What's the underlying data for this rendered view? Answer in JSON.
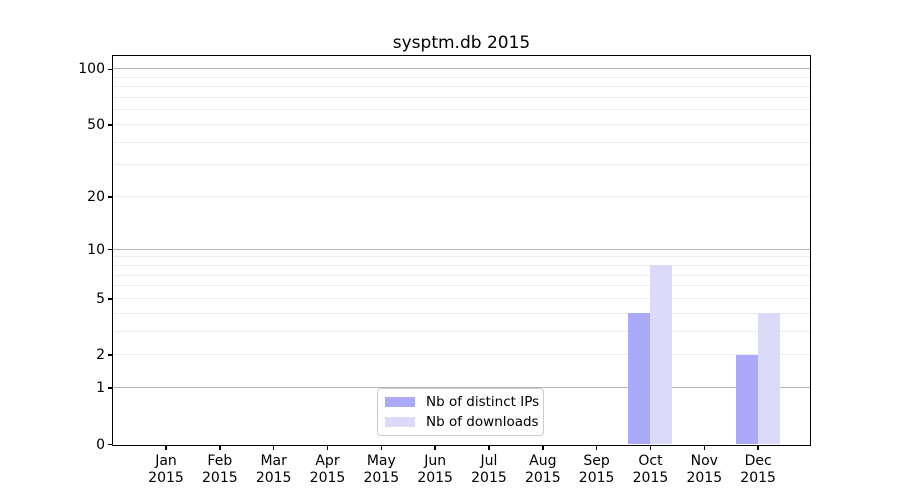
{
  "title": "sysptm.db 2015",
  "legend": {
    "items": [
      {
        "label": "Nb of distinct IPs",
        "color": "#aaaaf8"
      },
      {
        "label": "Nb of downloads",
        "color": "#dbdaf8"
      }
    ]
  },
  "chart_data": {
    "type": "bar",
    "title": "sysptm.db 2015",
    "categories": [
      "Jan",
      "Feb",
      "Mar",
      "Apr",
      "May",
      "Jun",
      "Jul",
      "Aug",
      "Sep",
      "Oct",
      "Nov",
      "Dec"
    ],
    "x_year_label": "2015",
    "series": [
      {
        "name": "Nb of distinct IPs",
        "color": "#aaaaf8",
        "values": [
          0,
          0,
          0,
          0,
          0,
          0,
          0,
          0,
          0,
          4,
          0,
          2
        ]
      },
      {
        "name": "Nb of downloads",
        "color": "#dbdaf8",
        "values": [
          0,
          0,
          0,
          0,
          0,
          0,
          0,
          0,
          0,
          8,
          0,
          4
        ]
      }
    ],
    "xlabel": "",
    "ylabel": "",
    "yscale": "log1p",
    "ylim": [
      0,
      117
    ],
    "ytick_values": [
      0,
      1,
      2,
      5,
      10,
      20,
      50,
      100
    ],
    "ytick_labels": [
      "0",
      "1",
      "2",
      "5",
      "10",
      "20",
      "50",
      "100"
    ],
    "grid_major_values": [
      1,
      10,
      100
    ],
    "grid_minor_values": [
      2,
      3,
      4,
      5,
      6,
      7,
      8,
      9,
      20,
      30,
      40,
      50,
      60,
      70,
      80,
      90
    ],
    "grid_major_color": "#b4b4b4",
    "grid_minor_color": "#ececec",
    "legend_position": "lower center inside"
  }
}
